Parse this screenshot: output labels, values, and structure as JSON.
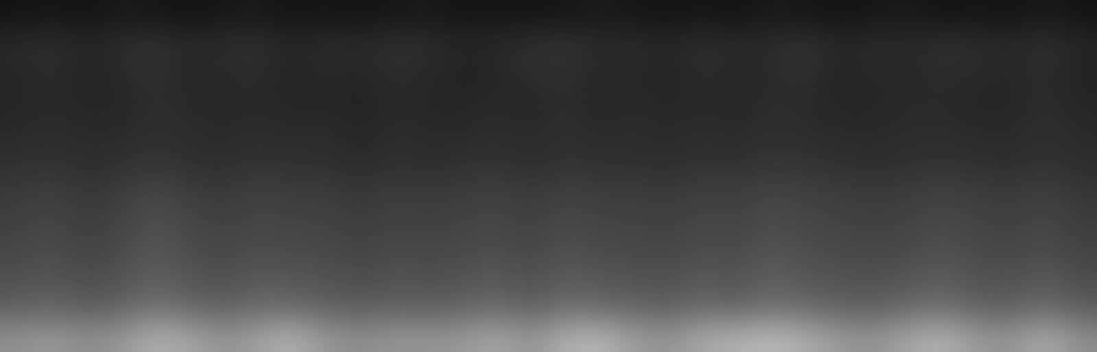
{
  "chart_data": {
    "type": "heatmap",
    "color": "gray",
    "tick_labels": false,
    "zlim": [
      0,
      80
    ],
    "cells": [
      [
        6,
        7,
        6,
        8,
        7,
        6,
        7,
        8,
        6,
        7,
        6,
        7,
        8,
        6,
        7,
        6,
        7,
        8,
        7,
        6,
        7,
        6,
        8,
        7,
        6,
        7,
        8,
        6,
        7,
        6,
        8,
        6
      ],
      [
        13,
        15,
        12,
        14,
        16,
        13,
        14,
        15,
        12,
        14,
        13,
        15,
        14,
        12,
        13,
        15,
        16,
        13,
        14,
        12,
        15,
        13,
        14,
        16,
        12,
        14,
        13,
        15,
        14,
        13,
        15,
        12
      ],
      [
        12,
        14,
        11,
        13,
        15,
        12,
        13,
        14,
        11,
        13,
        12,
        14,
        13,
        11,
        12,
        14,
        15,
        12,
        13,
        11,
        14,
        12,
        13,
        15,
        11,
        13,
        12,
        14,
        13,
        12,
        14,
        11
      ],
      [
        12,
        13,
        12,
        12,
        14,
        13,
        12,
        13,
        12,
        12,
        11,
        13,
        12,
        12,
        13,
        12,
        14,
        12,
        13,
        12,
        13,
        12,
        14,
        13,
        12,
        12,
        13,
        13,
        12,
        12,
        14,
        12
      ],
      [
        13,
        14,
        13,
        13,
        15,
        14,
        13,
        14,
        13,
        14,
        12,
        14,
        13,
        13,
        14,
        13,
        15,
        13,
        14,
        13,
        14,
        13,
        15,
        14,
        13,
        13,
        14,
        14,
        13,
        13,
        15,
        13
      ],
      [
        15,
        16,
        14,
        15,
        17,
        15,
        14,
        16,
        15,
        15,
        13,
        15,
        14,
        15,
        16,
        14,
        16,
        15,
        15,
        14,
        16,
        15,
        17,
        16,
        15,
        14,
        15,
        16,
        15,
        14,
        16,
        14
      ],
      [
        18,
        20,
        17,
        19,
        22,
        19,
        18,
        20,
        19,
        19,
        17,
        19,
        18,
        19,
        20,
        18,
        20,
        19,
        19,
        18,
        20,
        19,
        21,
        20,
        19,
        18,
        19,
        20,
        19,
        18,
        20,
        17
      ],
      [
        20,
        22,
        19,
        21,
        25,
        22,
        20,
        22,
        21,
        21,
        19,
        21,
        20,
        21,
        22,
        20,
        23,
        21,
        21,
        20,
        22,
        21,
        24,
        22,
        21,
        20,
        21,
        23,
        21,
        20,
        22,
        19
      ],
      [
        22,
        24,
        21,
        23,
        27,
        24,
        22,
        24,
        23,
        23,
        21,
        23,
        22,
        23,
        24,
        22,
        25,
        23,
        23,
        22,
        24,
        23,
        26,
        24,
        23,
        22,
        23,
        25,
        23,
        22,
        24,
        21
      ],
      [
        25,
        27,
        24,
        26,
        30,
        27,
        25,
        28,
        27,
        26,
        24,
        26,
        25,
        26,
        28,
        25,
        29,
        27,
        26,
        25,
        28,
        26,
        30,
        27,
        26,
        25,
        27,
        29,
        26,
        25,
        28,
        24
      ],
      [
        30,
        32,
        29,
        31,
        36,
        33,
        30,
        34,
        33,
        31,
        29,
        31,
        30,
        31,
        34,
        30,
        35,
        33,
        32,
        30,
        34,
        31,
        36,
        33,
        31,
        30,
        33,
        35,
        31,
        30,
        34,
        29
      ],
      [
        45,
        48,
        44,
        47,
        55,
        52,
        46,
        50,
        56,
        47,
        44,
        47,
        46,
        48,
        52,
        46,
        55,
        57,
        49,
        46,
        53,
        55,
        58,
        54,
        48,
        46,
        52,
        56,
        48,
        46,
        54,
        44
      ]
    ]
  }
}
